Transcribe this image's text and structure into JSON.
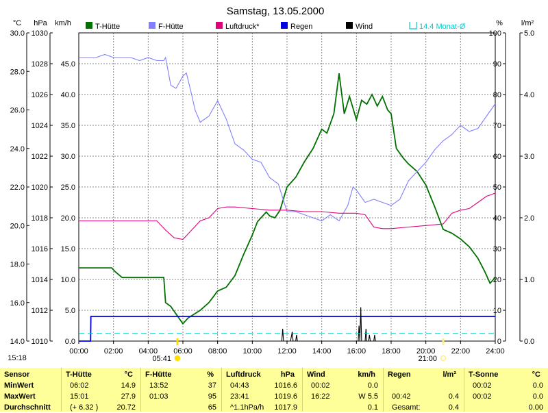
{
  "title": "Samstag, 13.05.2000",
  "time_label": "15:18",
  "units": {
    "temp": "°C",
    "pressure": "hPa",
    "wind": "km/h",
    "humidity": "%",
    "rain": "l/m²"
  },
  "legend": [
    {
      "name": "T-Hütte",
      "color": "#007000"
    },
    {
      "name": "F-Hütte",
      "color": "#8080ff"
    },
    {
      "name": "Luftdruck*",
      "color": "#e0007a"
    },
    {
      "name": "Regen",
      "color": "#0000e0"
    },
    {
      "name": "Wind",
      "color": "#000000"
    },
    {
      "name": "14.4 Monat-Ø",
      "color": "#00cccc"
    }
  ],
  "sunrise": "05:41",
  "sunset": "21:00",
  "chart_data": {
    "type": "line",
    "x_unit": "hours",
    "xlim": [
      0,
      24
    ],
    "x_ticks": [
      "00:00",
      "02:00",
      "04:00",
      "06:00",
      "08:00",
      "10:00",
      "12:00",
      "14:00",
      "16:00",
      "18:00",
      "20:00",
      "22:00",
      "24:00"
    ],
    "axes": {
      "temp": {
        "range": [
          14.0,
          30.0
        ],
        "ticks": [
          "14.0",
          "16.0",
          "18.0",
          "20.0",
          "22.0",
          "24.0",
          "26.0",
          "28.0",
          "30.0"
        ]
      },
      "pressure": {
        "range": [
          1010,
          1030
        ],
        "ticks": [
          "1010",
          "1012",
          "1014",
          "1016",
          "1018",
          "1020",
          "1022",
          "1024",
          "1026",
          "1028",
          "1030"
        ]
      },
      "wind": {
        "range": [
          0,
          50
        ],
        "ticks": [
          "0.0",
          "5.0",
          "10.0",
          "15.0",
          "20.0",
          "25.0",
          "30.0",
          "35.0",
          "40.0",
          "45.0"
        ]
      },
      "humidity": {
        "range": [
          0,
          100
        ],
        "ticks": [
          "0",
          "10",
          "20",
          "30",
          "40",
          "50",
          "60",
          "70",
          "80",
          "90",
          "100"
        ]
      },
      "rain": {
        "range": [
          0,
          5
        ],
        "ticks": [
          "0.0",
          "1.0",
          "2.0",
          "3.0",
          "4.0",
          "5.0"
        ]
      }
    },
    "grid": true,
    "series": [
      {
        "name": "T-Hütte",
        "axis": "temp",
        "color": "#007000",
        "x": [
          0,
          1.9,
          2.1,
          2.5,
          4.2,
          4.9,
          5.0,
          5.3,
          6.0,
          6.3,
          7.0,
          7.5,
          8.0,
          8.5,
          9.0,
          9.5,
          10.0,
          10.3,
          10.8,
          11.0,
          11.3,
          11.6,
          12.0,
          12.5,
          13.0,
          13.5,
          14.0,
          14.3,
          14.7,
          15.0,
          15.3,
          15.6,
          16.0,
          16.3,
          16.6,
          16.9,
          17.2,
          17.5,
          17.8,
          18.0,
          18.3,
          18.7,
          19.0,
          19.5,
          20.0,
          20.5,
          21.0,
          21.5,
          22.0,
          22.5,
          23.0,
          23.4,
          23.7,
          24.0
        ],
        "y": [
          17.8,
          17.8,
          17.6,
          17.3,
          17.3,
          17.3,
          16.0,
          15.8,
          14.9,
          15.2,
          15.6,
          16.0,
          16.6,
          16.8,
          17.4,
          18.5,
          19.5,
          20.2,
          20.7,
          20.5,
          20.4,
          20.8,
          22.0,
          22.5,
          23.3,
          24.0,
          25.0,
          24.8,
          25.8,
          27.9,
          25.8,
          26.7,
          25.5,
          26.5,
          26.3,
          26.8,
          26.2,
          26.7,
          26.0,
          25.8,
          24.0,
          23.5,
          23.2,
          22.8,
          22.1,
          21.0,
          19.8,
          19.6,
          19.3,
          18.9,
          18.3,
          17.6,
          17.0,
          17.3
        ]
      },
      {
        "name": "F-Hütte",
        "axis": "humidity",
        "color": "#8080ff",
        "x": [
          0,
          1.0,
          1.5,
          2.0,
          3.0,
          3.5,
          4.0,
          4.5,
          4.9,
          5.0,
          5.3,
          5.6,
          6.0,
          6.2,
          6.5,
          6.7,
          7.0,
          7.5,
          8.0,
          8.5,
          9.0,
          9.5,
          10.0,
          10.5,
          11.0,
          11.5,
          12.0,
          12.5,
          13.0,
          13.5,
          14.0,
          14.5,
          15.0,
          15.5,
          15.8,
          16.0,
          16.5,
          17.0,
          17.5,
          18.0,
          18.5,
          19.0,
          19.5,
          20.0,
          20.5,
          21.0,
          21.5,
          22.0,
          22.5,
          23.0,
          23.5,
          24.0
        ],
        "y": [
          92,
          92,
          93,
          92,
          92,
          91,
          92,
          91,
          91,
          92,
          83,
          82,
          86,
          87,
          80,
          75,
          71,
          73,
          78,
          72,
          64,
          62,
          59,
          58,
          53,
          51,
          42,
          42,
          41,
          40,
          39,
          41,
          39,
          44,
          50,
          49,
          45,
          46,
          45,
          44,
          46,
          52,
          55,
          58,
          62,
          65,
          67,
          70,
          68,
          69,
          73,
          77
        ]
      },
      {
        "name": "Luftdruck*",
        "axis": "pressure",
        "color": "#e0007a",
        "x": [
          0,
          2.0,
          4.0,
          4.5,
          5.0,
          5.5,
          6.0,
          6.5,
          7.0,
          7.5,
          8.0,
          8.5,
          9.0,
          10.0,
          11.0,
          12.0,
          13.0,
          14.0,
          15.0,
          16.0,
          16.5,
          17.0,
          17.5,
          18.0,
          19.0,
          20.0,
          21.0,
          21.5,
          22.0,
          22.5,
          23.0,
          23.5,
          24.0
        ],
        "y": [
          1017.8,
          1017.8,
          1017.8,
          1017.8,
          1017.2,
          1016.7,
          1016.6,
          1017.2,
          1017.8,
          1018.0,
          1018.6,
          1018.7,
          1018.7,
          1018.6,
          1018.5,
          1018.5,
          1018.4,
          1018.4,
          1018.3,
          1018.3,
          1018.2,
          1017.4,
          1017.3,
          1017.3,
          1017.4,
          1017.5,
          1017.6,
          1018.3,
          1018.5,
          1018.6,
          1019.0,
          1019.4,
          1019.6
        ]
      },
      {
        "name": "Regen",
        "axis": "rain",
        "color": "#0000e0",
        "x": [
          0,
          0.68,
          0.7,
          24.0
        ],
        "y": [
          0,
          0,
          0.4,
          0.4
        ]
      },
      {
        "name": "Wind",
        "axis": "wind",
        "color": "#000000",
        "points": [
          [
            11.7,
            0
          ],
          [
            11.75,
            2.0
          ],
          [
            11.8,
            0
          ],
          [
            12.2,
            0
          ],
          [
            12.3,
            1.5
          ],
          [
            12.35,
            0
          ],
          [
            12.5,
            0
          ],
          [
            12.55,
            1.0
          ],
          [
            12.6,
            0
          ],
          [
            16.1,
            0
          ],
          [
            16.15,
            2.5
          ],
          [
            16.2,
            0
          ],
          [
            16.25,
            5.5
          ],
          [
            16.3,
            0
          ],
          [
            16.5,
            0
          ],
          [
            16.55,
            2.0
          ],
          [
            16.6,
            0
          ],
          [
            16.7,
            0
          ],
          [
            16.75,
            1.0
          ],
          [
            16.8,
            0
          ],
          [
            17.0,
            0
          ],
          [
            17.05,
            1.0
          ],
          [
            17.1,
            0
          ]
        ]
      },
      {
        "name": "14.4 Monat-Ø",
        "axis": "temp",
        "color": "#00cccc",
        "x": [
          0,
          24
        ],
        "y": [
          14.4,
          14.4
        ]
      }
    ]
  },
  "stats": {
    "columns": [
      {
        "label": "Sensor",
        "unit": ""
      },
      {
        "label": "T-Hütte",
        "unit": "°C"
      },
      {
        "label": "F-Hütte",
        "unit": "%"
      },
      {
        "label": "Luftdruck",
        "unit": "hPa"
      },
      {
        "label": "Wind",
        "unit": "km/h"
      },
      {
        "label": "Regen",
        "unit": "l/m²"
      },
      {
        "label": "T-Sonne",
        "unit": "°C"
      }
    ],
    "rows": [
      {
        "label": "MinWert",
        "cells": [
          [
            "06:02",
            "14.9"
          ],
          [
            "13:52",
            "37"
          ],
          [
            "04:43",
            "1016.6"
          ],
          [
            "00:02",
            "0.0"
          ],
          [
            "",
            ""
          ],
          [
            "00:02",
            "0.0"
          ]
        ]
      },
      {
        "label": "MaxWert",
        "cells": [
          [
            "15:01",
            "27.9"
          ],
          [
            "01:03",
            "95"
          ],
          [
            "23:41",
            "1019.6"
          ],
          [
            "16:22",
            "W 5.5"
          ],
          [
            "00:42",
            "0.4"
          ],
          [
            "00:02",
            "0.0"
          ]
        ]
      },
      {
        "label": "Durchschnitt",
        "cells": [
          [
            "(+ 6.32 )",
            "20.72"
          ],
          [
            "",
            "65"
          ],
          [
            "^1.1hPa/h",
            "1017.9"
          ],
          [
            "",
            "0.1"
          ],
          [
            "Gesamt:",
            "0.4"
          ],
          [
            "",
            "0.00"
          ]
        ]
      }
    ]
  }
}
